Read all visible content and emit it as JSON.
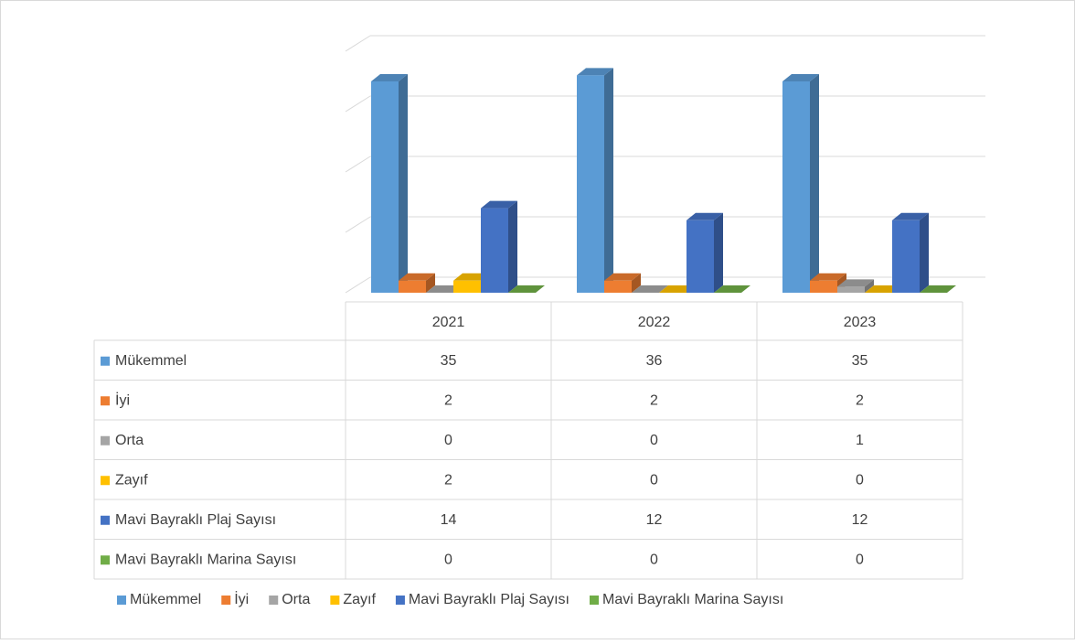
{
  "chart_data": {
    "type": "bar3d",
    "categories": [
      "2021",
      "2022",
      "2023"
    ],
    "series": [
      {
        "name": "Mükemmel",
        "color": "#5b9bd5",
        "values": [
          35,
          36,
          35
        ]
      },
      {
        "name": "İyi",
        "color": "#ed7d31",
        "values": [
          2,
          2,
          2
        ]
      },
      {
        "name": "Orta",
        "color": "#a5a5a5",
        "values": [
          0,
          0,
          1
        ]
      },
      {
        "name": "Zayıf",
        "color": "#ffc000",
        "values": [
          2,
          0,
          0
        ]
      },
      {
        "name": "Mavi Bayraklı Plaj Sayısı",
        "color": "#4472c4",
        "values": [
          14,
          12,
          12
        ]
      },
      {
        "name": "Mavi Bayraklı Marina Sayısı",
        "color": "#70ad47",
        "values": [
          0,
          0,
          0
        ]
      }
    ],
    "ylim": [
      0,
      40
    ],
    "yticks": [
      0,
      10,
      20,
      30,
      40
    ],
    "grid": true,
    "data_table": true,
    "legend": "bottom"
  }
}
